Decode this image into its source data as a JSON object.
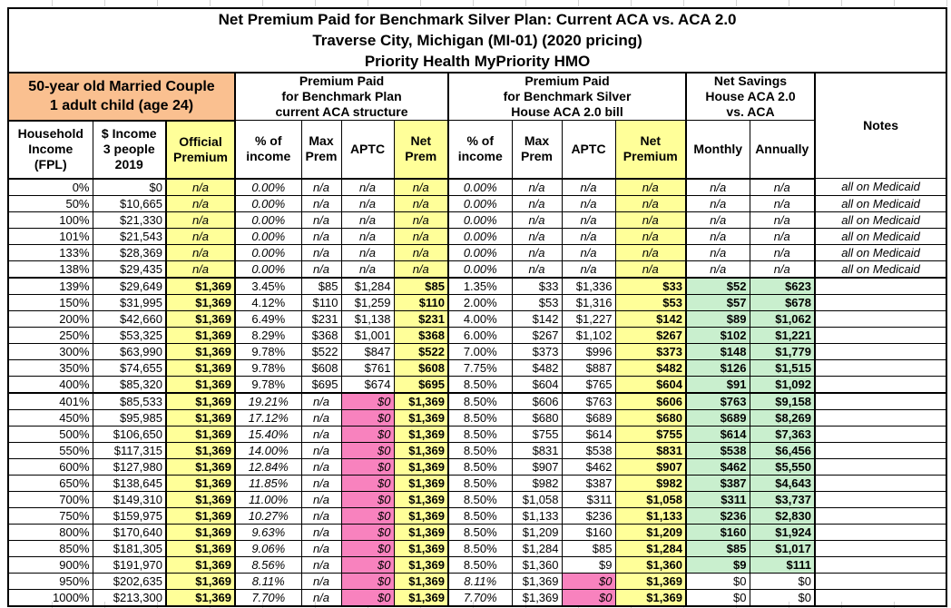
{
  "title": {
    "line1": "Net Premium Paid for Benchmark Silver Plan: Current ACA vs. ACA 2.0",
    "line2": "Traverse City, Michigan (MI-01) (2020 pricing)",
    "line3": "Priority Health MyPriority HMO"
  },
  "groups": {
    "person": "50-year old Married Couple\n1 adult child (age 24)",
    "aca": "Premium Paid\nfor Benchmark Plan\ncurrent ACA structure",
    "house": "Premium Paid\nfor Benchmark Silver\nHouse ACA 2.0 bill",
    "savings": "Net Savings\nHouse ACA 2.0\nvs. ACA",
    "notes_label": "Notes"
  },
  "columns": [
    "Household\nIncome\n(FPL)",
    "$ Income\n3 people\n2019",
    "Official\nPremium",
    "% of\nincome",
    "Max\nPrem",
    "APTC",
    "Net\nPrem",
    "% of\nincome",
    "Max\nPrem",
    "APTC",
    "Net\nPremium",
    "Monthly",
    "Annually"
  ],
  "colors": {
    "highlight_yellow": "#FFFF99",
    "person_orange": "#FAC090",
    "zero_aptc_pink": "#F882BE",
    "savings_green": "#C9EFCE",
    "border_black": "#000000"
  },
  "chart_data": {
    "type": "table",
    "note": "rows.cells order matches columns: FPL, Income, Official Premium, %ofincome(ACA), MaxPrem(ACA), APTC(ACA), NetPrem(ACA), %ofincome(House), MaxPrem(House), APTC(House), NetPremium(House), Monthly, Annually, Notes"
  },
  "rows": [
    {
      "kind": "medicaid",
      "cells": [
        "0%",
        "$0",
        "n/a",
        "0.00%",
        "n/a",
        "n/a",
        "n/a",
        "0.00%",
        "n/a",
        "n/a",
        "n/a",
        "n/a",
        "n/a",
        "all on Medicaid"
      ]
    },
    {
      "kind": "medicaid",
      "cells": [
        "50%",
        "$10,665",
        "n/a",
        "0.00%",
        "n/a",
        "n/a",
        "n/a",
        "0.00%",
        "n/a",
        "n/a",
        "n/a",
        "n/a",
        "n/a",
        "all on Medicaid"
      ]
    },
    {
      "kind": "medicaid",
      "cells": [
        "100%",
        "$21,330",
        "n/a",
        "0.00%",
        "n/a",
        "n/a",
        "n/a",
        "0.00%",
        "n/a",
        "n/a",
        "n/a",
        "n/a",
        "n/a",
        "all on Medicaid"
      ]
    },
    {
      "kind": "medicaid",
      "cells": [
        "101%",
        "$21,543",
        "n/a",
        "0.00%",
        "n/a",
        "n/a",
        "n/a",
        "0.00%",
        "n/a",
        "n/a",
        "n/a",
        "n/a",
        "n/a",
        "all on Medicaid"
      ]
    },
    {
      "kind": "medicaid",
      "cells": [
        "133%",
        "$28,369",
        "n/a",
        "0.00%",
        "n/a",
        "n/a",
        "n/a",
        "0.00%",
        "n/a",
        "n/a",
        "n/a",
        "n/a",
        "n/a",
        "all on Medicaid"
      ]
    },
    {
      "kind": "medicaid",
      "cells": [
        "138%",
        "$29,435",
        "n/a",
        "0.00%",
        "n/a",
        "n/a",
        "n/a",
        "0.00%",
        "n/a",
        "n/a",
        "n/a",
        "n/a",
        "n/a",
        "all on Medicaid"
      ]
    },
    {
      "kind": "aca",
      "cells": [
        "139%",
        "$29,649",
        "$1,369",
        "3.45%",
        "$85",
        "$1,284",
        "$85",
        "1.35%",
        "$33",
        "$1,336",
        "$33",
        "$52",
        "$623",
        ""
      ]
    },
    {
      "kind": "aca",
      "cells": [
        "150%",
        "$31,995",
        "$1,369",
        "4.12%",
        "$110",
        "$1,259",
        "$110",
        "2.00%",
        "$53",
        "$1,316",
        "$53",
        "$57",
        "$678",
        ""
      ]
    },
    {
      "kind": "aca",
      "cells": [
        "200%",
        "$42,660",
        "$1,369",
        "6.49%",
        "$231",
        "$1,138",
        "$231",
        "4.00%",
        "$142",
        "$1,227",
        "$142",
        "$89",
        "$1,062",
        ""
      ]
    },
    {
      "kind": "aca",
      "cells": [
        "250%",
        "$53,325",
        "$1,369",
        "8.29%",
        "$368",
        "$1,001",
        "$368",
        "6.00%",
        "$267",
        "$1,102",
        "$267",
        "$102",
        "$1,221",
        ""
      ]
    },
    {
      "kind": "aca",
      "cells": [
        "300%",
        "$63,990",
        "$1,369",
        "9.78%",
        "$522",
        "$847",
        "$522",
        "7.00%",
        "$373",
        "$996",
        "$373",
        "$148",
        "$1,779",
        ""
      ]
    },
    {
      "kind": "aca",
      "cells": [
        "350%",
        "$74,655",
        "$1,369",
        "9.78%",
        "$608",
        "$761",
        "$608",
        "7.75%",
        "$482",
        "$887",
        "$482",
        "$126",
        "$1,515",
        ""
      ]
    },
    {
      "kind": "aca",
      "cells": [
        "400%",
        "$85,320",
        "$1,369",
        "9.78%",
        "$695",
        "$674",
        "$695",
        "8.50%",
        "$604",
        "$765",
        "$604",
        "$91",
        "$1,092",
        ""
      ]
    },
    {
      "kind": "phaseout",
      "cells": [
        "401%",
        "$85,533",
        "$1,369",
        "19.21%",
        "n/a",
        "$0",
        "$1,369",
        "8.50%",
        "$606",
        "$763",
        "$606",
        "$763",
        "$9,158",
        ""
      ]
    },
    {
      "kind": "phaseout",
      "cells": [
        "450%",
        "$95,985",
        "$1,369",
        "17.12%",
        "n/a",
        "$0",
        "$1,369",
        "8.50%",
        "$680",
        "$689",
        "$680",
        "$689",
        "$8,269",
        ""
      ]
    },
    {
      "kind": "phaseout",
      "cells": [
        "500%",
        "$106,650",
        "$1,369",
        "15.40%",
        "n/a",
        "$0",
        "$1,369",
        "8.50%",
        "$755",
        "$614",
        "$755",
        "$614",
        "$7,363",
        ""
      ]
    },
    {
      "kind": "phaseout",
      "cells": [
        "550%",
        "$117,315",
        "$1,369",
        "14.00%",
        "n/a",
        "$0",
        "$1,369",
        "8.50%",
        "$831",
        "$538",
        "$831",
        "$538",
        "$6,456",
        ""
      ]
    },
    {
      "kind": "phaseout",
      "cells": [
        "600%",
        "$127,980",
        "$1,369",
        "12.84%",
        "n/a",
        "$0",
        "$1,369",
        "8.50%",
        "$907",
        "$462",
        "$907",
        "$462",
        "$5,550",
        ""
      ]
    },
    {
      "kind": "phaseout",
      "cells": [
        "650%",
        "$138,645",
        "$1,369",
        "11.85%",
        "n/a",
        "$0",
        "$1,369",
        "8.50%",
        "$982",
        "$387",
        "$982",
        "$387",
        "$4,643",
        ""
      ]
    },
    {
      "kind": "phaseout",
      "cells": [
        "700%",
        "$149,310",
        "$1,369",
        "11.00%",
        "n/a",
        "$0",
        "$1,369",
        "8.50%",
        "$1,058",
        "$311",
        "$1,058",
        "$311",
        "$3,737",
        ""
      ]
    },
    {
      "kind": "phaseout",
      "cells": [
        "750%",
        "$159,975",
        "$1,369",
        "10.27%",
        "n/a",
        "$0",
        "$1,369",
        "8.50%",
        "$1,133",
        "$236",
        "$1,133",
        "$236",
        "$2,830",
        ""
      ]
    },
    {
      "kind": "phaseout",
      "cells": [
        "800%",
        "$170,640",
        "$1,369",
        "9.63%",
        "n/a",
        "$0",
        "$1,369",
        "8.50%",
        "$1,209",
        "$160",
        "$1,209",
        "$160",
        "$1,924",
        ""
      ]
    },
    {
      "kind": "phaseout",
      "cells": [
        "850%",
        "$181,305",
        "$1,369",
        "9.06%",
        "n/a",
        "$0",
        "$1,369",
        "8.50%",
        "$1,284",
        "$85",
        "$1,284",
        "$85",
        "$1,017",
        ""
      ]
    },
    {
      "kind": "phaseout",
      "cells": [
        "900%",
        "$191,970",
        "$1,369",
        "8.56%",
        "n/a",
        "$0",
        "$1,369",
        "8.50%",
        "$1,360",
        "$9",
        "$1,360",
        "$9",
        "$111",
        ""
      ]
    },
    {
      "kind": "zero",
      "cells": [
        "950%",
        "$202,635",
        "$1,369",
        "8.11%",
        "n/a",
        "$0",
        "$1,369",
        "8.11%",
        "$1,369",
        "$0",
        "$1,369",
        "$0",
        "$0",
        ""
      ]
    },
    {
      "kind": "zero",
      "cells": [
        "1000%",
        "$213,300",
        "$1,369",
        "7.70%",
        "n/a",
        "$0",
        "$1,369",
        "7.70%",
        "$1,369",
        "$0",
        "$1,369",
        "$0",
        "$0",
        ""
      ]
    }
  ]
}
